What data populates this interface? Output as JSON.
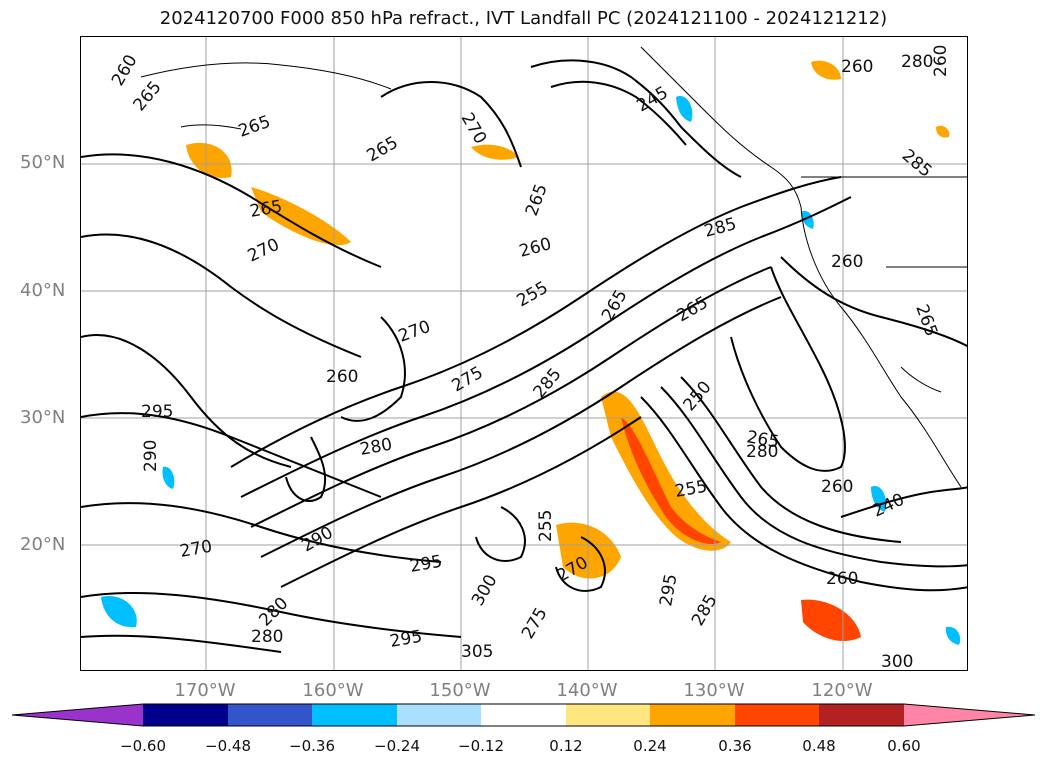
{
  "title": "2024120700 F000 850 hPa refract., IVT Landfall PC (2024121100 - 2024121212)",
  "lat_ticks": [
    "50°N",
    "40°N",
    "30°N",
    "20°N"
  ],
  "lon_ticks": [
    "170°W",
    "160°W",
    "150°W",
    "140°W",
    "130°W",
    "120°W"
  ],
  "colorbar": {
    "ticks": [
      "−0.60",
      "−0.48",
      "−0.36",
      "−0.24",
      "−0.12",
      "0.12",
      "0.24",
      "0.36",
      "0.48",
      "0.60"
    ],
    "colors": [
      "#9933cc",
      "#00008b",
      "#3355cc",
      "#00bfff",
      "#aadfff",
      "#ffffff",
      "#ffe680",
      "#ffa500",
      "#ff4500",
      "#b22222",
      "#ff85a8"
    ]
  },
  "contour_labels": [
    "260",
    "265",
    "265",
    "265",
    "270",
    "265",
    "265",
    "270",
    "260",
    "255",
    "265",
    "260",
    "245",
    "280",
    "285",
    "260",
    "260",
    "265",
    "260",
    "255",
    "255",
    "270",
    "275",
    "280",
    "285",
    "265",
    "280",
    "250",
    "265",
    "260",
    "240",
    "285",
    "295",
    "290",
    "290",
    "300",
    "295",
    "305",
    "275",
    "270",
    "280",
    "295",
    "260",
    "280",
    "300",
    "295",
    "285",
    "270"
  ]
}
